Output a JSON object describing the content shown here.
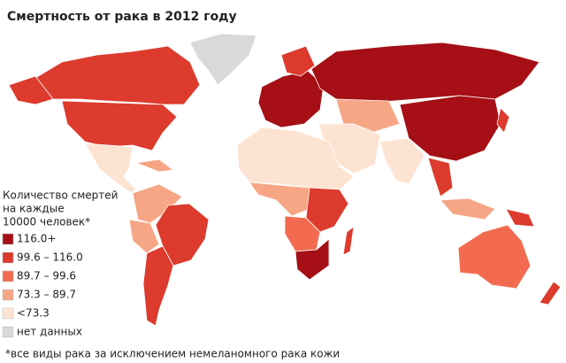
{
  "title": "Смертность от рака в 2012 году",
  "legend": {
    "title_lines": [
      "Количество смертей",
      "на каждые",
      "10000 человек*"
    ],
    "items": [
      {
        "label": "116.0+",
        "color": "#a50f15"
      },
      {
        "label": "99.6 – 116.0",
        "color": "#dc3b2d"
      },
      {
        "label": "89.7 – 99.6",
        "color": "#f26b50"
      },
      {
        "label": "73.3 – 89.7",
        "color": "#f6a685"
      },
      {
        "label": "<73.3",
        "color": "#fde3d2"
      },
      {
        "label": "нет данных",
        "color": "#d9d9d9"
      }
    ]
  },
  "footnote": "*все виды рака за исключением немеланомного рака кожи"
}
